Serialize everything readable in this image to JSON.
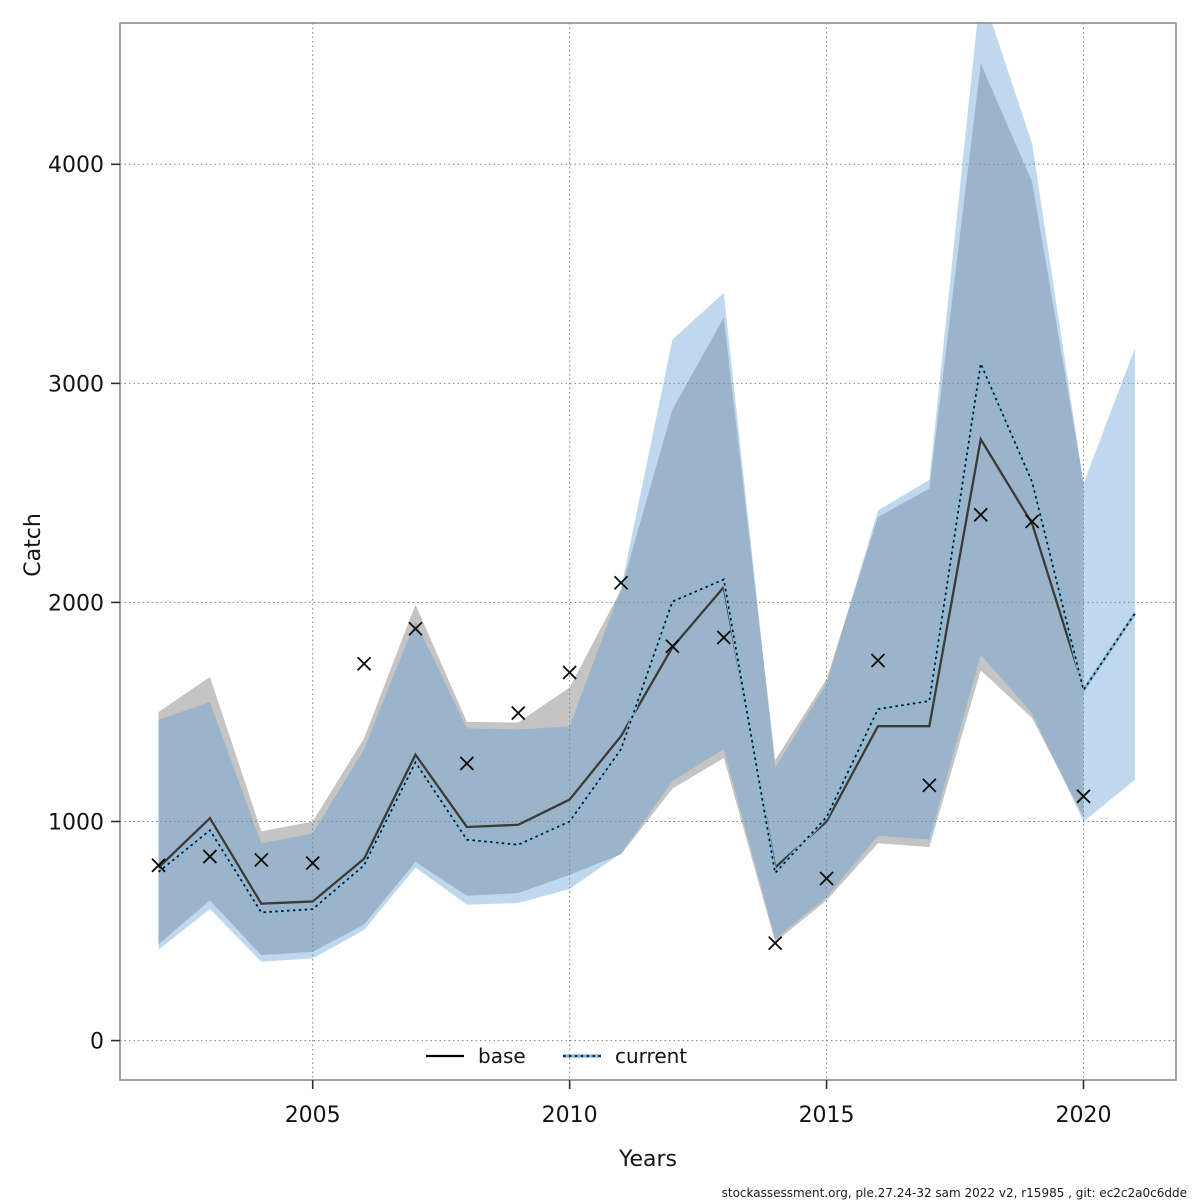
{
  "figure": {
    "y_axis": {
      "label": "Catch",
      "ticks": [
        0,
        1000,
        2000,
        3000,
        4000
      ]
    },
    "x_axis": {
      "label": "Years",
      "ticks": [
        2005,
        2010,
        2015,
        2020
      ]
    },
    "legend": [
      {
        "label": "base",
        "style": "solid-black-line"
      },
      {
        "label": "current",
        "style": "dotted-blue-line"
      }
    ],
    "footer": "stockassessment.org, ple.27.24-32 sam 2022 v2, r15985 , git: ec2c2a0c6dde",
    "colors": {
      "base_band": "#7d7d7d",
      "current_band": "#5f9ed2",
      "base_line": "#3b3b3b",
      "current_line": "#101010",
      "current_halo": "#85bade",
      "marker": "#0d0d0d",
      "grid": "#7f7f7f",
      "border": "#8a8a8a"
    }
  },
  "chart_data": {
    "type": "line",
    "title": "",
    "xlabel": "Years",
    "ylabel": "Catch",
    "xlim": [
      2001.25,
      2021.8
    ],
    "ylim": [
      -180,
      4645
    ],
    "grid": "dotted-both-axes",
    "legend_position": "bottom-center-inside",
    "x": [
      2002,
      2003,
      2004,
      2005,
      2006,
      2007,
      2008,
      2009,
      2010,
      2011,
      2012,
      2013,
      2014,
      2015,
      2016,
      2017,
      2018,
      2019,
      2020,
      2021
    ],
    "series": [
      {
        "name": "base",
        "kind": "line-with-ci-band",
        "line_style": "solid",
        "values": [
          790,
          1015,
          625,
          635,
          830,
          1305,
          975,
          985,
          1100,
          1390,
          1795,
          2070,
          790,
          1000,
          1435,
          1435,
          2745,
          2360,
          1610,
          null
        ],
        "ci_low": [
          440,
          640,
          390,
          405,
          530,
          815,
          661,
          673,
          757,
          850,
          1150,
          1290,
          450,
          640,
          901,
          883,
          1690,
          1472,
          1020,
          null
        ],
        "ci_high": [
          1500,
          1660,
          955,
          1000,
          1380,
          1990,
          1455,
          1452,
          1612,
          2057,
          2880,
          3300,
          1280,
          1650,
          2390,
          2520,
          4460,
          3920,
          2550,
          null
        ]
      },
      {
        "name": "current",
        "kind": "line-with-ci-band",
        "line_style": "dotted",
        "values": [
          770,
          960,
          585,
          600,
          800,
          1270,
          917,
          894,
          1000,
          1330,
          2004,
          2105,
          765,
          1020,
          1513,
          1550,
          3090,
          2550,
          1600,
          1950
        ],
        "ci_low": [
          415,
          600,
          360,
          375,
          505,
          790,
          620,
          628,
          692,
          855,
          1185,
          1330,
          465,
          655,
          935,
          917,
          1760,
          1494,
          1000,
          1190
        ],
        "ci_high": [
          1465,
          1545,
          900,
          945,
          1330,
          1915,
          1425,
          1420,
          1434,
          2065,
          3200,
          3413,
          1245,
          1630,
          2420,
          2560,
          4800,
          4094,
          2543,
          3160
        ]
      },
      {
        "name": "observed-catch",
        "kind": "scatter",
        "marker": "x",
        "values": [
          800,
          840,
          825,
          810,
          1720,
          1880,
          1265,
          1495,
          1680,
          2090,
          1800,
          1840,
          445,
          740,
          1735,
          1165,
          2400,
          2370,
          1115,
          null
        ]
      }
    ]
  }
}
